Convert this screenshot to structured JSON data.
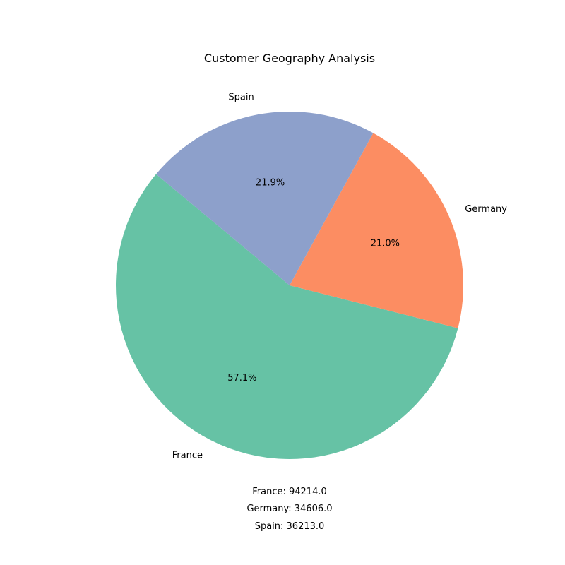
{
  "chart_data": {
    "type": "pie",
    "title": "Customer Geography Analysis",
    "categories": [
      "France",
      "Germany",
      "Spain"
    ],
    "values": [
      94214.0,
      34606.0,
      36213.0
    ],
    "percent_labels": [
      "57.1%",
      "21.0%",
      "21.9%"
    ],
    "colors": [
      "#66c2a5",
      "#fc8d62",
      "#8da0cb"
    ],
    "value_lines": [
      "France: 94214.0",
      "Germany: 34606.0",
      "Spain: 36213.0"
    ]
  }
}
